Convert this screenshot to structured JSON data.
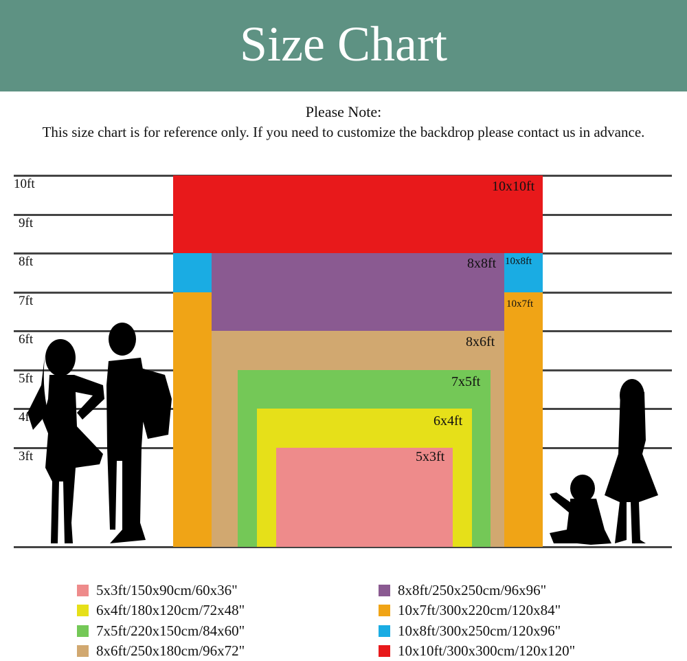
{
  "header": {
    "title": "Size Chart"
  },
  "note": {
    "heading": "Please Note:",
    "text": "This size chart is for reference only. If you need to customize the backdrop please contact us in advance."
  },
  "scale": {
    "ticks": [
      "10ft",
      "9ft",
      "8ft",
      "7ft",
      "6ft",
      "5ft",
      "4ft",
      "3ft"
    ]
  },
  "colors": {
    "header": "#5e9283",
    "10x10": "#e8191b",
    "10x8": "#1aace3",
    "10x7": "#f0a416",
    "8x8": "#8a5a91",
    "8x6": "#d1a870",
    "7x5": "#74c857",
    "6x4": "#e6e019",
    "5x3": "#ee8b8b"
  },
  "sizes": {
    "s10x10": "10x10ft",
    "s10x8": "10x8ft",
    "s10x7": "10x7ft",
    "s8x8": "8x8ft",
    "s8x6": "8x6ft",
    "s7x5": "7x5ft",
    "s6x4": "6x4ft",
    "s5x3": "5x3ft"
  },
  "legend": [
    "5x3ft/150x90cm/60x36\"",
    "6x4ft/180x120cm/72x48\"",
    "7x5ft/220x150cm/84x60\"",
    "8x6ft/250x180cm/96x72\"",
    "8x8ft/250x250cm/96x96\"",
    "10x7ft/300x220cm/120x84\"",
    "10x8ft/300x250cm/120x96\"",
    "10x10ft/300x300cm/120x120\""
  ]
}
